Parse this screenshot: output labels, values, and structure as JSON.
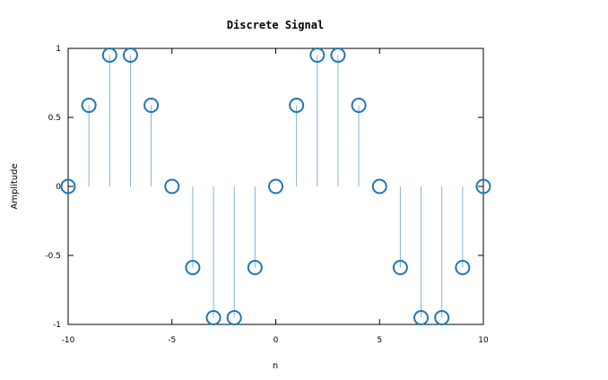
{
  "chart_data": {
    "type": "stem",
    "title": "Discrete Signal",
    "xlabel": "n",
    "ylabel": "Amplitude",
    "xlim": [
      -10,
      10
    ],
    "ylim": [
      -1,
      1
    ],
    "xticks": [
      "-10",
      "-5",
      "0",
      "5",
      "10"
    ],
    "yticks": [
      "-1",
      "-0.5",
      "0",
      "0.5",
      "1"
    ],
    "grid": false,
    "series": [
      {
        "x": [
          -10,
          -9,
          -8,
          -7,
          -6,
          -5,
          -4,
          -3,
          -2,
          -1,
          0,
          1,
          2,
          3,
          4,
          5,
          6,
          7,
          8,
          9,
          10
        ],
        "values": [
          0,
          0.5878,
          0.9511,
          0.9511,
          0.5878,
          0,
          -0.5878,
          -0.9511,
          -0.9511,
          -0.5878,
          0,
          0.5878,
          0.9511,
          0.9511,
          0.5878,
          0,
          -0.5878,
          -0.9511,
          -0.9511,
          -0.5878,
          0
        ]
      }
    ],
    "colors": {
      "marker": "#1f77b4",
      "stem": "#7fb3d5",
      "axes": "#000000"
    }
  }
}
